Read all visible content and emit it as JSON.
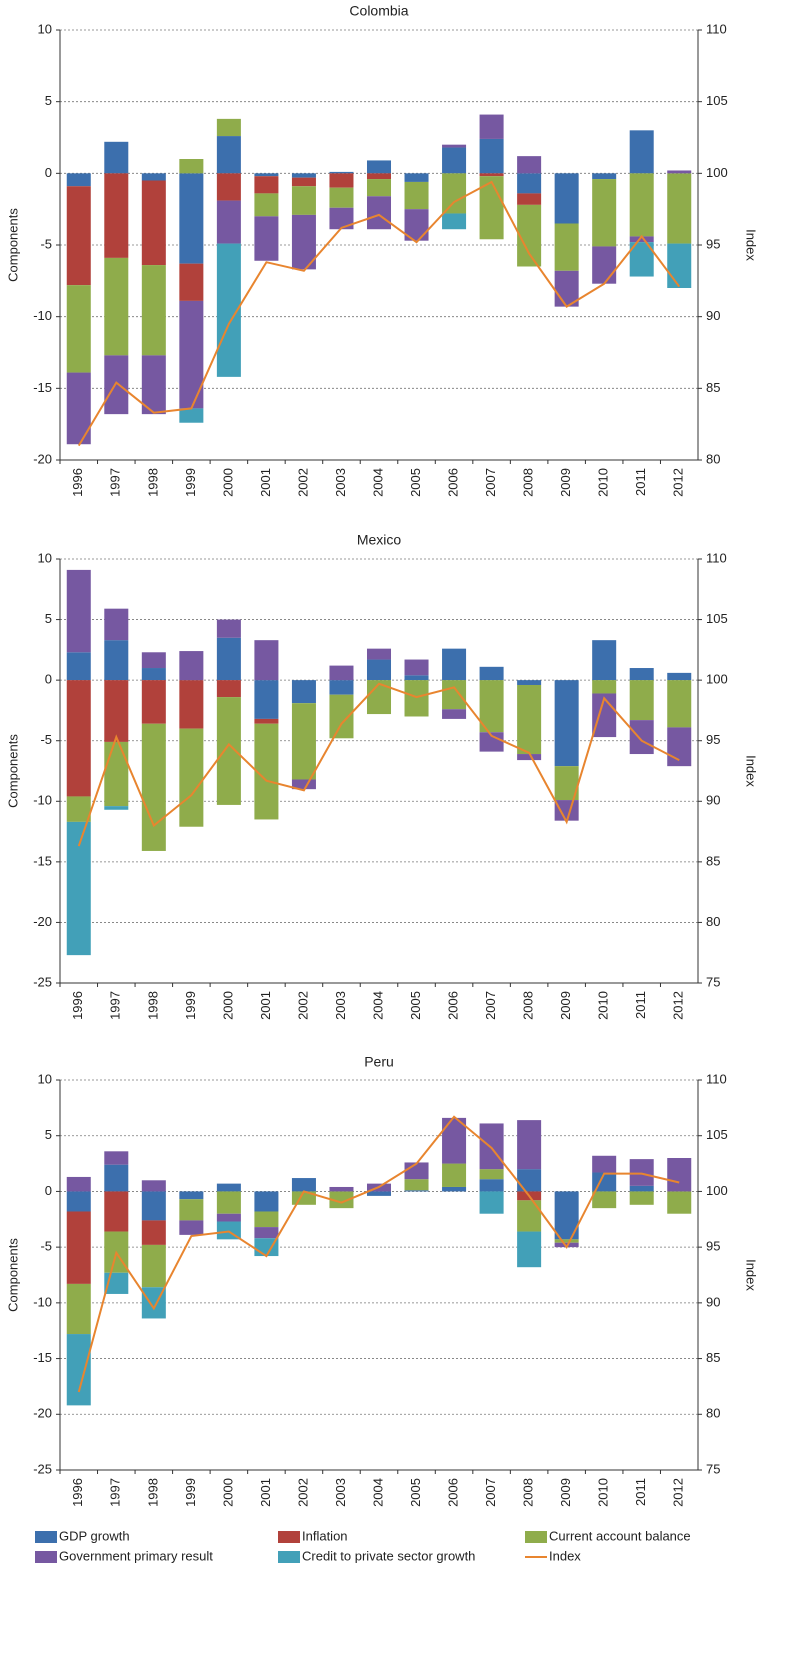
{
  "chart_data": [
    {
      "type": "bar",
      "stacked": true,
      "title": "Colombia",
      "y_label": "Components",
      "y2_label": "Index",
      "categories": [
        "1996",
        "1997",
        "1998",
        "1999",
        "2000",
        "2001",
        "2002",
        "2003",
        "2004",
        "2005",
        "2006",
        "2007",
        "2008",
        "2009",
        "2010",
        "2011",
        "2012"
      ],
      "ylim": [
        -20,
        10
      ],
      "yticks": [
        -20,
        -15,
        -10,
        -5,
        0,
        5,
        10
      ],
      "y2lim": [
        80,
        110
      ],
      "y2ticks": [
        80,
        85,
        90,
        95,
        100,
        105,
        110
      ],
      "grid": true,
      "series": [
        {
          "name": "GDP growth",
          "color": "#3c6fad",
          "values": [
            -0.9,
            2.2,
            -0.5,
            -6.3,
            2.6,
            -0.2,
            -0.3,
            0.1,
            0.9,
            -0.6,
            1.8,
            2.4,
            -1.4,
            -3.5,
            -0.4,
            3.0,
            0
          ]
        },
        {
          "name": "Inflation",
          "color": "#b1413b",
          "values": [
            -6.9,
            -5.9,
            -5.9,
            -2.6,
            -1.9,
            -1.2,
            -0.6,
            -1.0,
            -0.4,
            0,
            0,
            -0.2,
            -0.8,
            0,
            0,
            0,
            0
          ]
        },
        {
          "name": "Current account balance",
          "color": "#8fac4b",
          "values": [
            -6.1,
            -6.8,
            -6.3,
            1.0,
            1.2,
            -1.6,
            -2.0,
            -1.4,
            -1.2,
            -1.9,
            -2.8,
            -4.4,
            -4.3,
            -3.3,
            -4.7,
            -4.4,
            -4.9
          ]
        },
        {
          "name": "Government primary result",
          "color": "#7658a1",
          "values": [
            -5.0,
            -4.1,
            -4.1,
            -7.5,
            -3.0,
            -3.1,
            -3.8,
            -1.5,
            -2.3,
            -2.2,
            0.2,
            1.7,
            1.2,
            -2.5,
            -2.6,
            -0.4,
            0.2
          ]
        },
        {
          "name": "Credit to private sector growth",
          "color": "#42a0b8",
          "values": [
            0,
            0,
            0,
            -1.0,
            -9.3,
            0,
            0,
            0,
            0,
            0,
            -1.1,
            0,
            0,
            0,
            0,
            -2.4,
            -3.1
          ]
        },
        {
          "name": "Index",
          "type": "line",
          "axis": "y2",
          "color": "#e8852f",
          "values": [
            81.0,
            85.4,
            83.3,
            83.6,
            89.5,
            93.8,
            93.2,
            96.2,
            97.1,
            95.2,
            98.0,
            99.4,
            94.4,
            90.7,
            92.3,
            95.6,
            92.1
          ]
        }
      ]
    },
    {
      "type": "bar",
      "stacked": true,
      "title": "Mexico",
      "y_label": "Components",
      "y2_label": "Index",
      "categories": [
        "1996",
        "1997",
        "1998",
        "1999",
        "2000",
        "2001",
        "2002",
        "2003",
        "2004",
        "2005",
        "2006",
        "2007",
        "2008",
        "2009",
        "2010",
        "2011",
        "2012"
      ],
      "ylim": [
        -25,
        10
      ],
      "yticks": [
        -25,
        -20,
        -15,
        -10,
        -5,
        0,
        5,
        10
      ],
      "y2lim": [
        75,
        110
      ],
      "y2ticks": [
        75,
        80,
        85,
        90,
        95,
        100,
        105,
        110
      ],
      "grid": true,
      "series": [
        {
          "color": "#3c6fad",
          "values": [
            2.3,
            3.3,
            1.0,
            0,
            3.5,
            -3.2,
            -1.9,
            -1.2,
            1.7,
            0.4,
            2.6,
            1.1,
            -0.4,
            -7.1,
            3.3,
            1.0,
            0.6
          ]
        },
        {
          "color": "#b1413b",
          "values": [
            -9.6,
            -5.1,
            -3.6,
            -4.0,
            -1.4,
            -0.4,
            0,
            0,
            0,
            0,
            0,
            0,
            0,
            0,
            0,
            0,
            0
          ]
        },
        {
          "color": "#8fac4b",
          "values": [
            -2.1,
            -5.3,
            -10.5,
            -8.1,
            -8.9,
            -7.9,
            -6.3,
            -3.6,
            -2.8,
            -3.0,
            -2.4,
            -4.3,
            -5.7,
            -2.8,
            -1.1,
            -3.3,
            -3.9
          ]
        },
        {
          "color": "#7658a1",
          "values": [
            6.8,
            2.6,
            1.3,
            2.4,
            1.5,
            3.3,
            -0.8,
            1.2,
            0.9,
            1.3,
            -0.8,
            -1.6,
            -0.5,
            -1.7,
            -3.6,
            -2.8,
            -3.2
          ]
        },
        {
          "color": "#42a0b8",
          "values": [
            -11.0,
            -0.3,
            0,
            0,
            0,
            0,
            0,
            0,
            0,
            0,
            0,
            0,
            0,
            0,
            0,
            0,
            0
          ]
        },
        {
          "type": "line",
          "axis": "y2",
          "color": "#e8852f",
          "values": [
            86.3,
            95.3,
            88.0,
            90.5,
            94.7,
            91.7,
            90.9,
            96.4,
            99.7,
            98.6,
            99.4,
            95.4,
            94.0,
            88.3,
            98.5,
            95.0,
            93.4
          ]
        }
      ]
    },
    {
      "type": "bar",
      "stacked": true,
      "title": "Peru",
      "y_label": "Components",
      "y2_label": "Index",
      "categories": [
        "1996",
        "1997",
        "1998",
        "1999",
        "2000",
        "2001",
        "2002",
        "2003",
        "2004",
        "2005",
        "2006",
        "2007",
        "2008",
        "2009",
        "2010",
        "2011",
        "2012"
      ],
      "ylim": [
        -25,
        10
      ],
      "yticks": [
        -25,
        -20,
        -15,
        -10,
        -5,
        0,
        5,
        10
      ],
      "y2lim": [
        75,
        110
      ],
      "y2ticks": [
        75,
        80,
        85,
        90,
        95,
        100,
        105,
        110
      ],
      "grid": true,
      "series": [
        {
          "color": "#3c6fad",
          "values": [
            -1.8,
            2.4,
            -2.6,
            -0.7,
            0.7,
            -1.8,
            1.2,
            0,
            -0.4,
            0.1,
            0.4,
            1.1,
            2.0,
            -4.3,
            1.7,
            0.5,
            0
          ]
        },
        {
          "color": "#b1413b",
          "values": [
            -6.5,
            -3.6,
            -2.2,
            0,
            0,
            0,
            0,
            0,
            0,
            0,
            0,
            0,
            -0.8,
            0,
            0,
            0,
            0
          ]
        },
        {
          "color": "#8fac4b",
          "values": [
            -4.5,
            -3.7,
            -3.8,
            -1.9,
            -2.0,
            -1.4,
            -1.2,
            -1.5,
            0,
            1.0,
            2.1,
            0.9,
            -2.8,
            -0.3,
            -1.5,
            -1.2,
            -2.0
          ]
        },
        {
          "color": "#7658a1",
          "values": [
            1.3,
            1.2,
            1.0,
            -1.3,
            -0.7,
            -1.0,
            0,
            0.4,
            0.7,
            1.5,
            4.1,
            4.1,
            4.4,
            -0.4,
            1.5,
            2.4,
            3.0
          ]
        },
        {
          "color": "#42a0b8",
          "values": [
            -6.4,
            -1.9,
            -2.8,
            0,
            -1.6,
            -1.6,
            0,
            0,
            0,
            0,
            0,
            -2.0,
            -3.2,
            0,
            0,
            0,
            0
          ]
        },
        {
          "type": "line",
          "axis": "y2",
          "color": "#e8852f",
          "values": [
            82.0,
            94.5,
            89.5,
            96.0,
            96.4,
            94.2,
            100.0,
            99.0,
            100.4,
            102.5,
            106.7,
            103.9,
            99.6,
            95.0,
            101.6,
            101.6,
            100.8
          ]
        }
      ]
    }
  ]
}
